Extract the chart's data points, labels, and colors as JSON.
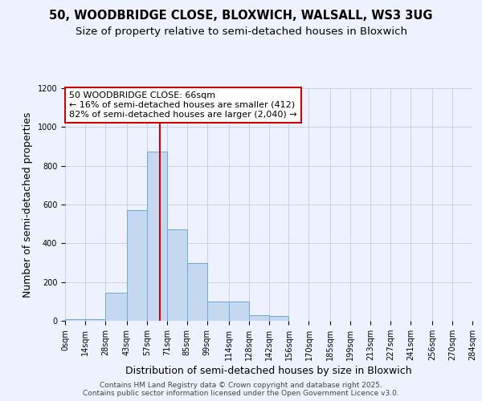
{
  "title1": "50, WOODBRIDGE CLOSE, BLOXWICH, WALSALL, WS3 3UG",
  "title2": "Size of property relative to semi-detached houses in Bloxwich",
  "xlabel": "Distribution of semi-detached houses by size in Bloxwich",
  "ylabel": "Number of semi-detached properties",
  "bin_edges": [
    0,
    14,
    28,
    43,
    57,
    71,
    85,
    99,
    114,
    128,
    142,
    156,
    170,
    185,
    199,
    213,
    227,
    241,
    256,
    270,
    284
  ],
  "bar_heights": [
    8,
    10,
    145,
    570,
    875,
    470,
    300,
    100,
    100,
    30,
    25,
    0,
    0,
    0,
    0,
    0,
    0,
    0,
    0,
    0
  ],
  "bar_color": "#c5d8f0",
  "bar_edge_color": "#6aaad4",
  "property_size": 66,
  "property_line_color": "#cc0000",
  "annotation_line1": "50 WOODBRIDGE CLOSE: 66sqm",
  "annotation_line2": "← 16% of semi-detached houses are smaller (412)",
  "annotation_line3": "82% of semi-detached houses are larger (2,040) →",
  "annotation_box_color": "#ffffff",
  "annotation_box_edge_color": "#cc0000",
  "ylim": [
    0,
    1200
  ],
  "yticks": [
    0,
    200,
    400,
    600,
    800,
    1000,
    1200
  ],
  "tick_labels": [
    "0sqm",
    "14sqm",
    "28sqm",
    "43sqm",
    "57sqm",
    "71sqm",
    "85sqm",
    "99sqm",
    "114sqm",
    "128sqm",
    "142sqm",
    "156sqm",
    "170sqm",
    "185sqm",
    "199sqm",
    "213sqm",
    "227sqm",
    "241sqm",
    "256sqm",
    "270sqm",
    "284sqm"
  ],
  "footer_text": "Contains HM Land Registry data © Crown copyright and database right 2025.\nContains public sector information licensed under the Open Government Licence v3.0.",
  "background_color": "#eef2ff",
  "plot_bg_color": "#eef2ff",
  "grid_color": "#c8d0e0",
  "title_fontsize": 10.5,
  "subtitle_fontsize": 9.5,
  "axis_label_fontsize": 9,
  "tick_fontsize": 7,
  "footer_fontsize": 6.5,
  "annotation_fontsize": 8
}
